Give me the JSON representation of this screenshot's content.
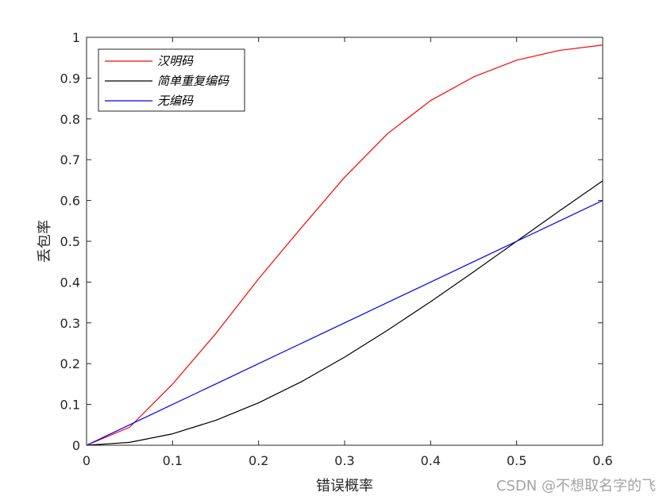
{
  "watermark": "CSDN @不想取名字的飞",
  "chart_data": {
    "type": "line",
    "title": "",
    "xlabel": "错误概率",
    "ylabel": "丢包率",
    "xlim": [
      0,
      0.6
    ],
    "ylim": [
      0,
      1
    ],
    "xticks": [
      "0",
      "0.1",
      "0.2",
      "0.3",
      "0.4",
      "0.5",
      "0.6"
    ],
    "yticks": [
      "0",
      "0.1",
      "0.2",
      "0.3",
      "0.4",
      "0.5",
      "0.6",
      "0.7",
      "0.8",
      "0.9",
      "1"
    ],
    "grid": false,
    "legend_position": "top-left",
    "x": [
      0,
      0.05,
      0.1,
      0.15,
      0.2,
      0.25,
      0.3,
      0.35,
      0.4,
      0.45,
      0.5,
      0.55,
      0.6
    ],
    "series": [
      {
        "name": "汉明码",
        "color": "#ff0000",
        "values": [
          0,
          0.044,
          0.15,
          0.273,
          0.408,
          0.534,
          0.657,
          0.764,
          0.845,
          0.903,
          0.944,
          0.968,
          0.981
        ]
      },
      {
        "name": "简单重复编码",
        "color": "#000000",
        "values": [
          0,
          0.007,
          0.028,
          0.061,
          0.104,
          0.156,
          0.216,
          0.282,
          0.352,
          0.425,
          0.5,
          0.575,
          0.648
        ]
      },
      {
        "name": "无编码",
        "color": "#0000ff",
        "values": [
          0,
          0.05,
          0.1,
          0.15,
          0.2,
          0.25,
          0.3,
          0.35,
          0.4,
          0.45,
          0.5,
          0.55,
          0.6
        ]
      }
    ]
  }
}
